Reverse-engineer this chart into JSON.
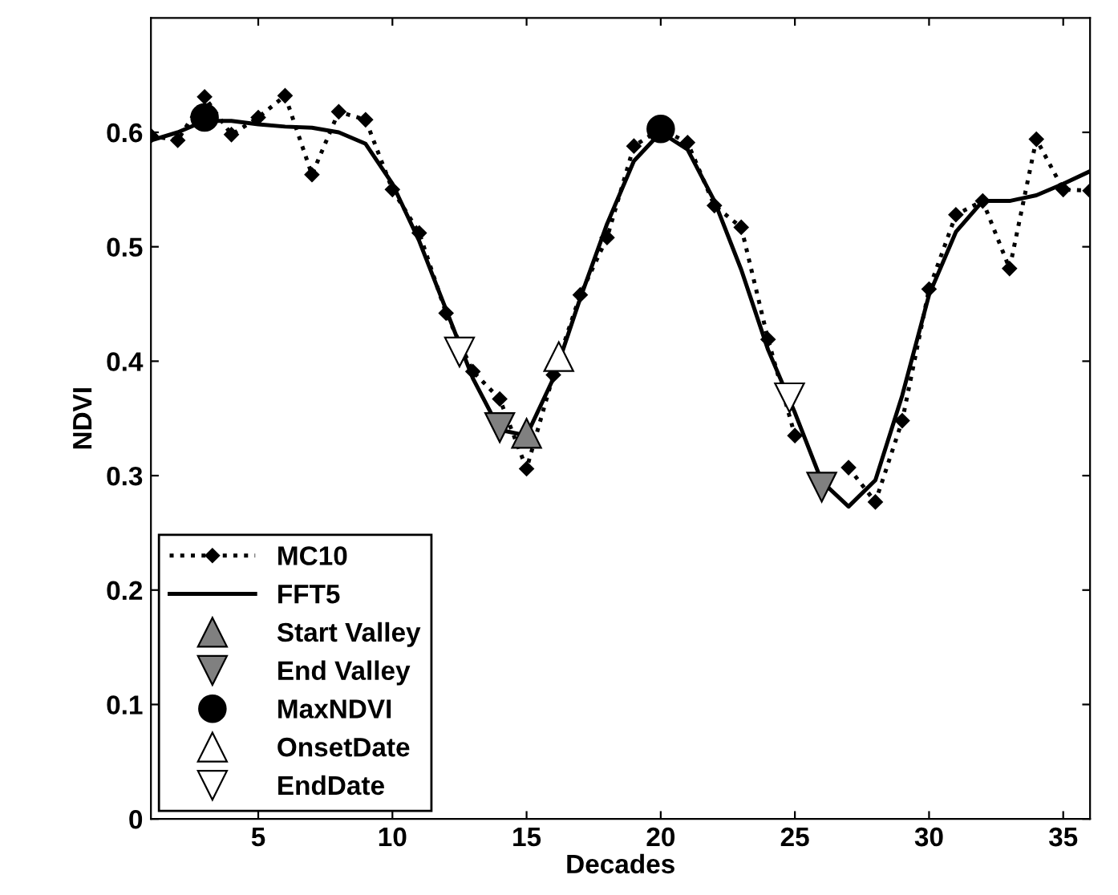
{
  "chart_data": {
    "type": "line",
    "xlabel": "Decades",
    "ylabel": "NDVI",
    "xlim": [
      1,
      36
    ],
    "ylim": [
      0,
      0.7
    ],
    "xticks": [
      5,
      10,
      15,
      20,
      25,
      30,
      35
    ],
    "yticks": [
      0,
      0.1,
      0.2,
      0.3,
      0.4,
      0.5,
      0.6
    ],
    "grid": false,
    "legend": "bottom left",
    "series": [
      {
        "name": "MC10",
        "color": "#000000",
        "marker": "diamond",
        "line_style": "dotted",
        "x": [
          1,
          2,
          3,
          4,
          5,
          6,
          7,
          8,
          9,
          10,
          11,
          12,
          13,
          14,
          15,
          16,
          17,
          18,
          19,
          20,
          21,
          22,
          23,
          24,
          25,
          26,
          27,
          28,
          29,
          30,
          31,
          32,
          33,
          34,
          35,
          36
        ],
        "values": [
          0.597,
          0.593,
          0.631,
          0.598,
          0.613,
          0.632,
          0.563,
          0.618,
          0.611,
          0.55,
          0.512,
          0.442,
          0.391,
          0.367,
          0.306,
          0.388,
          0.458,
          0.508,
          0.588,
          0.603,
          0.591,
          0.536,
          0.517,
          0.419,
          0.335,
          null,
          0.307,
          0.277,
          0.348,
          0.463,
          0.528,
          0.54,
          0.481,
          0.594,
          0.55,
          0.549
        ]
      },
      {
        "name": "FFT5",
        "color": "#000000",
        "marker": "none",
        "line_style": "solid",
        "x": [
          1,
          2,
          3,
          4,
          5,
          6,
          7,
          8,
          9,
          10,
          11,
          12,
          13,
          14,
          15,
          16,
          17,
          18,
          19,
          20,
          21,
          22,
          23,
          24,
          25,
          26,
          27,
          28,
          29,
          30,
          31,
          32,
          33,
          34,
          35,
          36
        ],
        "values": [
          0.593,
          0.6,
          0.61,
          0.61,
          0.607,
          0.605,
          0.604,
          0.6,
          0.59,
          0.555,
          0.505,
          0.445,
          0.385,
          0.34,
          0.335,
          0.385,
          0.455,
          0.52,
          0.575,
          0.6,
          0.585,
          0.54,
          0.48,
          0.41,
          0.355,
          0.295,
          0.273,
          0.296,
          0.37,
          0.458,
          0.513,
          0.54,
          0.54,
          0.545,
          0.555,
          0.566
        ]
      },
      {
        "name": "Start Valley",
        "type": "scatter",
        "color": "#808080",
        "marker": "triangle",
        "x": [
          15
        ],
        "values": [
          0.337
        ]
      },
      {
        "name": "End Valley",
        "type": "scatter",
        "color": "#808080",
        "marker": "triangle_down",
        "x": [
          14,
          26
        ],
        "values": [
          0.342,
          0.29
        ]
      },
      {
        "name": "MaxNDVI",
        "type": "scatter",
        "color": "#000000",
        "marker": "circle",
        "x": [
          3,
          20
        ],
        "values": [
          0.613,
          0.603
        ]
      },
      {
        "name": "OnsetDate",
        "type": "scatter",
        "color": "#ffffff",
        "marker": "triangle",
        "x": [
          16.2
        ],
        "values": [
          0.404
        ]
      },
      {
        "name": "EndDate",
        "type": "scatter",
        "color": "#ffffff",
        "marker": "triangle_down",
        "x": [
          12.5,
          24.8
        ],
        "values": [
          0.408,
          0.368
        ]
      }
    ]
  }
}
